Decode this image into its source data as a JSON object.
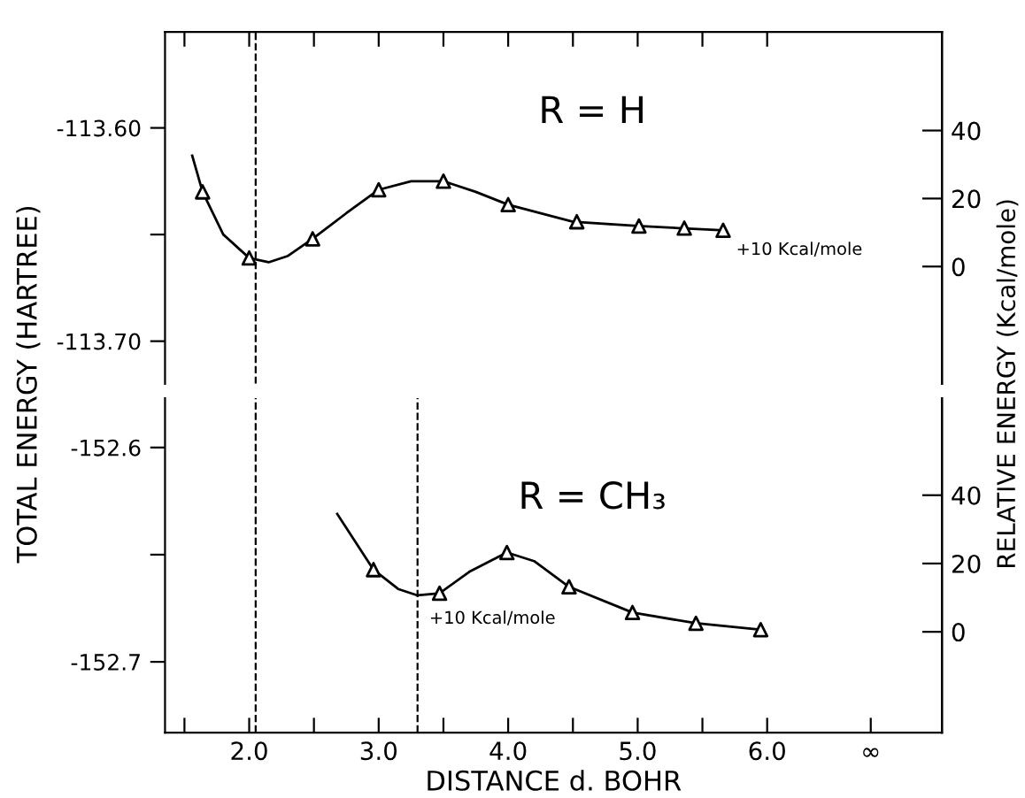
{
  "chart_data": [
    {
      "type": "line",
      "ylabel": "TOTAL ENERGY (HARTREE)",
      "y2label": "RELATIVE ENERGY (Kcal/mole)",
      "x": [
        1.56,
        1.64,
        1.8,
        2.0,
        2.15,
        2.3,
        2.49,
        2.75,
        3.0,
        3.25,
        3.5,
        3.75,
        4.0,
        4.5,
        5.0,
        5.66
      ],
      "series": [
        {
          "color": "#000000",
          "marker": "none",
          "values": [
            -113.613,
            -113.63,
            -113.65,
            -113.661,
            -113.663,
            -113.66,
            -113.652,
            -113.64,
            -113.629,
            -113.625,
            -113.625,
            -113.63,
            -113.636,
            -113.644,
            -113.646,
            -113.648
          ]
        },
        {
          "type": "scatter",
          "color": "#000000",
          "marker": "triangle",
          "x": [
            1.64,
            2.0,
            2.49,
            3.0,
            3.5,
            4.0,
            4.53,
            5.01,
            5.36,
            5.66
          ],
          "values": [
            -113.63,
            -113.661,
            -113.652,
            -113.629,
            -113.625,
            -113.636,
            -113.644,
            -113.646,
            -113.647,
            -113.648
          ]
        }
      ],
      "xlim": [
        1.35,
        7.35
      ],
      "xticks": [
        {
          "value": 1.5,
          "label": null
        },
        2.0,
        {
          "value": 2.5,
          "label": null
        },
        3.0,
        {
          "value": 3.5,
          "label": null
        },
        4.0,
        {
          "value": 4.5,
          "label": null
        },
        5.0,
        {
          "value": 5.5,
          "label": null
        },
        6.0
      ],
      "ylim": [
        -113.72,
        -113.555
      ],
      "yticks": [
        {
          "value": -113.6,
          "label": "-113.60"
        },
        {
          "value": -113.65,
          "label": null
        },
        {
          "value": -113.7,
          "label": "-113.70"
        }
      ],
      "y2lim": [
        -34.5,
        69
      ],
      "y2ticks": [
        0,
        20,
        40
      ],
      "tick_labels": "y",
      "grid": false,
      "legend": false,
      "ref_lines": [
        {
          "axis": "x",
          "value": 2.05,
          "line_style": "dashed",
          "color": "#000000"
        }
      ],
      "annotations": [
        "R = H",
        "+10 Kcal/mole"
      ]
    },
    {
      "type": "line",
      "xlabel": "DISTANCE d. BOHR",
      "x": [
        2.68,
        2.96,
        3.15,
        3.3,
        3.47,
        3.7,
        3.99,
        4.2,
        4.47,
        4.96,
        5.45,
        5.95
      ],
      "series": [
        {
          "color": "#000000",
          "marker": "none",
          "values": [
            -152.631,
            -152.657,
            -152.666,
            -152.669,
            -152.668,
            -152.658,
            -152.649,
            -152.653,
            -152.665,
            -152.677,
            -152.682,
            -152.685
          ]
        },
        {
          "type": "scatter",
          "color": "#000000",
          "marker": "triangle",
          "x": [
            2.96,
            3.47,
            3.99,
            4.47,
            4.96,
            5.45,
            5.95
          ],
          "values": [
            -152.657,
            -152.668,
            -152.649,
            -152.665,
            -152.677,
            -152.682,
            -152.685
          ]
        }
      ],
      "xlim": [
        1.35,
        7.35
      ],
      "xticks": [
        {
          "value": 1.5,
          "label": null
        },
        {
          "value": 2.0,
          "label": "2.0"
        },
        {
          "value": 2.5,
          "label": null
        },
        {
          "value": 3.0,
          "label": "3.0"
        },
        {
          "value": 3.5,
          "label": null
        },
        {
          "value": 4.0,
          "label": "4.0"
        },
        {
          "value": 4.5,
          "label": null
        },
        {
          "value": 5.0,
          "label": "5.0"
        },
        {
          "value": 5.5,
          "label": null
        },
        {
          "value": 6.0,
          "label": "6.0"
        },
        {
          "value": 6.8,
          "label": "∞"
        }
      ],
      "ylim": [
        -152.733,
        -152.577
      ],
      "yticks": [
        {
          "value": -152.6,
          "label": "-152.6"
        },
        {
          "value": -152.65,
          "label": null
        },
        {
          "value": -152.7,
          "label": "-152.7"
        }
      ],
      "y2lim": [
        -29.5,
        68.4
      ],
      "y2ticks": [
        0,
        20,
        40
      ],
      "grid": false,
      "legend": false,
      "ref_lines": [
        {
          "axis": "x",
          "value": 2.05,
          "line_style": "dashed",
          "color": "#000000"
        },
        {
          "axis": "x",
          "value": 3.3,
          "line_style": "dashed",
          "color": "#000000"
        }
      ],
      "annotations": [
        "R = CH₃",
        "+10 Kcal/mole"
      ]
    }
  ]
}
